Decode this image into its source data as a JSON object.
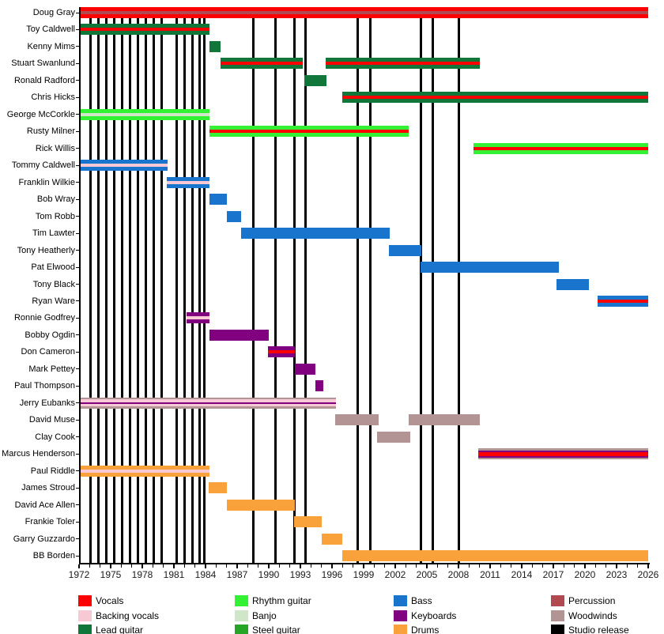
{
  "chart_data": {
    "type": "bar",
    "subtype": "band-membership-timeline-gantt",
    "title": "",
    "x_axis": {
      "min": 1972,
      "max": 2026,
      "major_tick_step": 3,
      "minor_tick_step": 1,
      "tick_labels": [
        "1972",
        "1975",
        "1978",
        "1981",
        "1984",
        "1987",
        "1990",
        "1993",
        "1996",
        "1999",
        "2002",
        "2005",
        "2008",
        "2011",
        "2014",
        "2017",
        "2020",
        "2023",
        "2026"
      ]
    },
    "grid": "off",
    "colors": {
      "vocals": "#fe0000",
      "backing_vocals": "#f6c9d4",
      "lead_guitar": "#11763a",
      "rhythm_guitar": "#33f133",
      "banjo": "#cfe7c8",
      "steel_guitar": "#27a527",
      "bass": "#1874cd",
      "keyboards": "#800080",
      "drums": "#f9a23c",
      "percussion": "#b04a50",
      "woodwinds": "#b39494",
      "studio_release": "#000000"
    },
    "legend_columns": [
      [
        {
          "label": "Vocals",
          "color": "vocals"
        },
        {
          "label": "Backing vocals",
          "color": "backing_vocals"
        },
        {
          "label": "Lead guitar",
          "color": "lead_guitar"
        }
      ],
      [
        {
          "label": "Rhythm guitar",
          "color": "rhythm_guitar"
        },
        {
          "label": "Banjo",
          "color": "banjo"
        },
        {
          "label": "Steel guitar",
          "color": "steel_guitar"
        }
      ],
      [
        {
          "label": "Bass",
          "color": "bass"
        },
        {
          "label": "Keyboards",
          "color": "keyboards"
        },
        {
          "label": "Drums",
          "color": "drums"
        }
      ],
      [
        {
          "label": "Percussion",
          "color": "percussion"
        },
        {
          "label": "Woodwinds",
          "color": "woodwinds"
        },
        {
          "label": "Studio release",
          "color": "studio_release"
        }
      ]
    ],
    "studio_release_years": [
      1973.05,
      1973.8,
      1974.55,
      1975.3,
      1976.05,
      1976.8,
      1977.55,
      1978.3,
      1979.05,
      1979.8,
      1981.25,
      1982.0,
      1982.73,
      1983.45,
      1983.92,
      1988.5,
      1990.6,
      1992.45,
      1993.5,
      1998.4,
      1999.6,
      2004.4,
      2005.55,
      2008.0
    ],
    "members": [
      {
        "name": "Doug Gray",
        "roles": [
          "vocals",
          "percussion"
        ],
        "bars": [
          {
            "start": 1972,
            "end": 2026,
            "stripes": [
              "vocals",
              "percussion",
              "vocals"
            ]
          }
        ]
      },
      {
        "name": "Toy Caldwell",
        "roles": [
          "lead_guitar",
          "vocals"
        ],
        "bars": [
          {
            "start": 1972,
            "end": 1984.4,
            "stripes": [
              "lead_guitar",
              "vocals",
              "lead_guitar"
            ]
          }
        ]
      },
      {
        "name": "Kenny Mims",
        "roles": [
          "lead_guitar"
        ],
        "bars": [
          {
            "start": 1984.4,
            "end": 1985.45,
            "stripes": [
              "lead_guitar"
            ]
          }
        ]
      },
      {
        "name": "Stuart Swanlund",
        "roles": [
          "lead_guitar",
          "vocals"
        ],
        "bars": [
          {
            "start": 1985.4,
            "end": 1993.25,
            "stripes": [
              "lead_guitar",
              "vocals",
              "lead_guitar"
            ]
          },
          {
            "start": 1995.4,
            "end": 2010.0,
            "stripes": [
              "lead_guitar",
              "vocals",
              "lead_guitar"
            ]
          }
        ]
      },
      {
        "name": "Ronald Radford",
        "roles": [
          "lead_guitar"
        ],
        "bars": [
          {
            "start": 1993.4,
            "end": 1995.5,
            "stripes": [
              "lead_guitar"
            ]
          }
        ]
      },
      {
        "name": "Chris Hicks",
        "roles": [
          "lead_guitar",
          "vocals"
        ],
        "bars": [
          {
            "start": 1996.95,
            "end": 2026,
            "stripes": [
              "lead_guitar",
              "vocals",
              "lead_guitar"
            ]
          }
        ]
      },
      {
        "name": "George McCorkle",
        "roles": [
          "rhythm_guitar",
          "banjo"
        ],
        "bars": [
          {
            "start": 1972,
            "end": 1984.4,
            "stripes": [
              "rhythm_guitar",
              "banjo",
              "rhythm_guitar"
            ]
          }
        ]
      },
      {
        "name": "Rusty Milner",
        "roles": [
          "rhythm_guitar",
          "vocals"
        ],
        "bars": [
          {
            "start": 1984.4,
            "end": 2003.3,
            "stripes": [
              "rhythm_guitar",
              "vocals",
              "rhythm_guitar"
            ]
          }
        ]
      },
      {
        "name": "Rick Willis",
        "roles": [
          "rhythm_guitar",
          "vocals"
        ],
        "bars": [
          {
            "start": 2009.4,
            "end": 2026,
            "stripes": [
              "rhythm_guitar",
              "vocals",
              "rhythm_guitar"
            ]
          }
        ]
      },
      {
        "name": "Tommy Caldwell",
        "roles": [
          "bass",
          "backing_vocals"
        ],
        "bars": [
          {
            "start": 1972,
            "end": 1980.4,
            "stripes": [
              "bass",
              "backing_vocals",
              "bass"
            ]
          }
        ]
      },
      {
        "name": "Franklin Wilkie",
        "roles": [
          "bass",
          "backing_vocals"
        ],
        "bars": [
          {
            "start": 1980.3,
            "end": 1984.4,
            "stripes": [
              "bass",
              "backing_vocals",
              "bass"
            ]
          }
        ]
      },
      {
        "name": "Bob Wray",
        "roles": [
          "bass"
        ],
        "bars": [
          {
            "start": 1984.4,
            "end": 1986.0,
            "stripes": [
              "bass"
            ]
          }
        ]
      },
      {
        "name": "Tom Robb",
        "roles": [
          "bass"
        ],
        "bars": [
          {
            "start": 1986.0,
            "end": 1987.4,
            "stripes": [
              "bass"
            ]
          }
        ]
      },
      {
        "name": "Tim Lawter",
        "roles": [
          "bass"
        ],
        "bars": [
          {
            "start": 1987.4,
            "end": 2001.5,
            "stripes": [
              "bass"
            ]
          }
        ]
      },
      {
        "name": "Tony Heatherly",
        "roles": [
          "bass"
        ],
        "bars": [
          {
            "start": 2001.4,
            "end": 2004.5,
            "stripes": [
              "bass"
            ]
          }
        ]
      },
      {
        "name": "Pat Elwood",
        "roles": [
          "bass"
        ],
        "bars": [
          {
            "start": 2004.4,
            "end": 2017.5,
            "stripes": [
              "bass"
            ]
          }
        ]
      },
      {
        "name": "Tony Black",
        "roles": [
          "bass"
        ],
        "bars": [
          {
            "start": 2017.3,
            "end": 2020.4,
            "stripes": [
              "bass"
            ]
          }
        ]
      },
      {
        "name": "Ryan Ware",
        "roles": [
          "bass",
          "vocals"
        ],
        "bars": [
          {
            "start": 2021.2,
            "end": 2026,
            "stripes": [
              "bass",
              "vocals",
              "bass"
            ]
          }
        ]
      },
      {
        "name": "Ronnie Godfrey",
        "roles": [
          "keyboards",
          "backing_vocals"
        ],
        "bars": [
          {
            "start": 1982.2,
            "end": 1984.4,
            "stripes": [
              "keyboards",
              "backing_vocals",
              "keyboards"
            ]
          }
        ]
      },
      {
        "name": "Bobby Ogdin",
        "roles": [
          "keyboards"
        ],
        "bars": [
          {
            "start": 1984.4,
            "end": 1990.0,
            "stripes": [
              "keyboards"
            ]
          }
        ]
      },
      {
        "name": "Don Cameron",
        "roles": [
          "keyboards",
          "vocals"
        ],
        "bars": [
          {
            "start": 1989.9,
            "end": 1992.5,
            "stripes": [
              "keyboards",
              "vocals",
              "keyboards"
            ]
          }
        ]
      },
      {
        "name": "Mark Pettey",
        "roles": [
          "keyboards"
        ],
        "bars": [
          {
            "start": 1992.5,
            "end": 1994.45,
            "stripes": [
              "keyboards"
            ]
          }
        ]
      },
      {
        "name": "Paul Thompson",
        "roles": [
          "keyboards"
        ],
        "bars": [
          {
            "start": 1994.4,
            "end": 1995.15,
            "stripes": [
              "keyboards"
            ]
          }
        ]
      },
      {
        "name": "Jerry Eubanks",
        "roles": [
          "woodwinds",
          "backing_vocals",
          "keyboards"
        ],
        "bars": [
          {
            "start": 1972,
            "end": 1996.4,
            "stripes": [
              "woodwinds",
              "backing_vocals",
              "keyboards",
              "backing_vocals",
              "woodwinds"
            ],
            "weights": [
              2.5,
              3.5,
              2,
              3.5,
              2.5
            ]
          }
        ]
      },
      {
        "name": "David Muse",
        "roles": [
          "woodwinds"
        ],
        "bars": [
          {
            "start": 1996.3,
            "end": 2000.4,
            "stripes": [
              "woodwinds"
            ]
          },
          {
            "start": 2003.3,
            "end": 2010.0,
            "stripes": [
              "woodwinds"
            ]
          }
        ]
      },
      {
        "name": "Clay Cook",
        "roles": [
          "woodwinds"
        ],
        "bars": [
          {
            "start": 2000.3,
            "end": 2003.4,
            "stripes": [
              "woodwinds"
            ]
          }
        ]
      },
      {
        "name": "Marcus Henderson",
        "roles": [
          "woodwinds",
          "keyboards",
          "vocals"
        ],
        "bars": [
          {
            "start": 2009.9,
            "end": 2026,
            "stripes": [
              "woodwinds",
              "keyboards",
              "vocals",
              "keyboards",
              "woodwinds"
            ],
            "weights": [
              2.5,
              2,
              5,
              2,
              2.5
            ]
          }
        ]
      },
      {
        "name": "Paul Riddle",
        "roles": [
          "drums",
          "backing_vocals"
        ],
        "bars": [
          {
            "start": 1972,
            "end": 1984.4,
            "stripes": [
              "drums",
              "backing_vocals",
              "drums"
            ]
          }
        ]
      },
      {
        "name": "James Stroud",
        "roles": [
          "drums"
        ],
        "bars": [
          {
            "start": 1984.3,
            "end": 1986.0,
            "stripes": [
              "drums"
            ]
          }
        ]
      },
      {
        "name": "David Ace Allen",
        "roles": [
          "drums"
        ],
        "bars": [
          {
            "start": 1986.0,
            "end": 1992.45,
            "stripes": [
              "drums"
            ]
          }
        ]
      },
      {
        "name": "Frankie Toler",
        "roles": [
          "drums"
        ],
        "bars": [
          {
            "start": 1992.4,
            "end": 1995.0,
            "stripes": [
              "drums"
            ]
          }
        ]
      },
      {
        "name": "Garry Guzzardo",
        "roles": [
          "drums"
        ],
        "bars": [
          {
            "start": 1995.0,
            "end": 1997.0,
            "stripes": [
              "drums"
            ]
          }
        ]
      },
      {
        "name": "BB Borden",
        "roles": [
          "drums"
        ],
        "bars": [
          {
            "start": 1997.0,
            "end": 2026,
            "stripes": [
              "drums"
            ]
          }
        ]
      }
    ]
  }
}
